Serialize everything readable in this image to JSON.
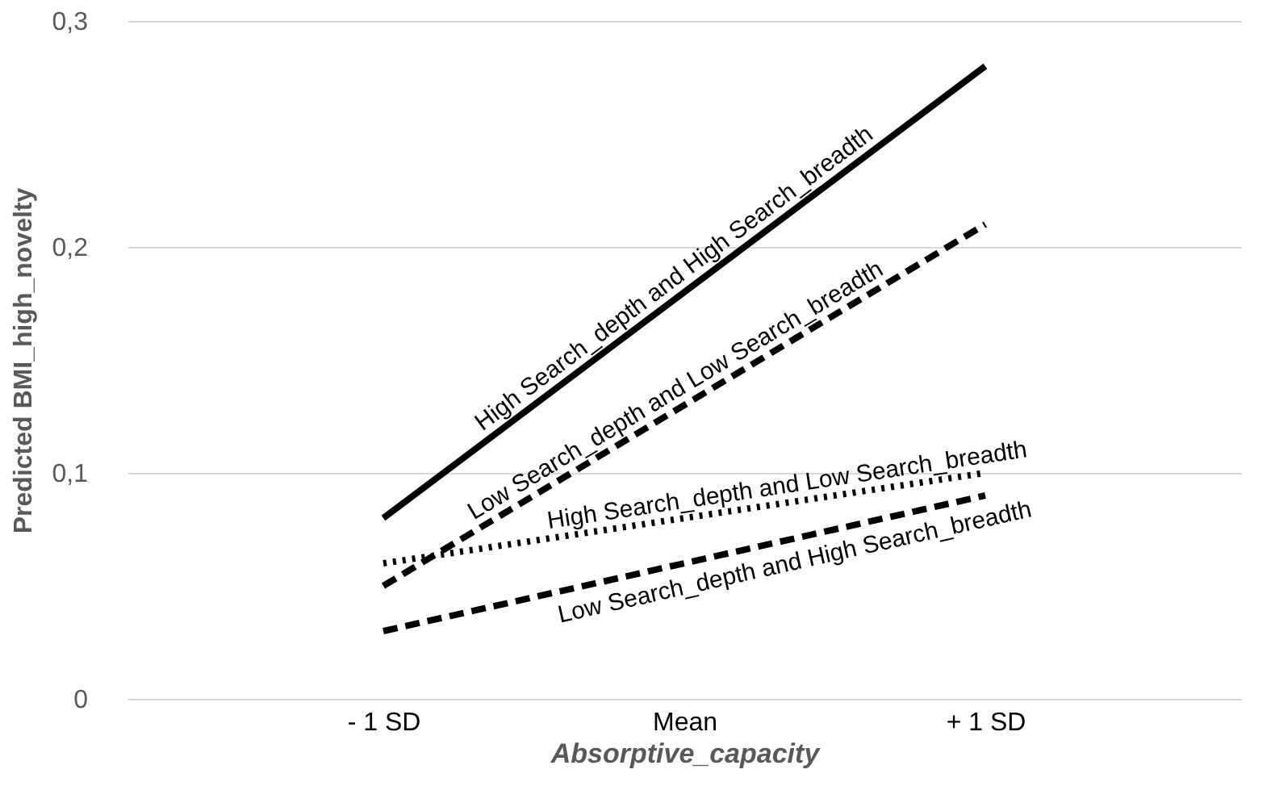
{
  "chart_data": {
    "type": "line",
    "xlabel": "Absorptive_capacity",
    "ylabel": "Predicted BMI_high_novelty",
    "categories": [
      "- 1 SD",
      "Mean",
      "+ 1 SD"
    ],
    "series": [
      {
        "name": "High Search_depth and High Search_breadth",
        "color": "#000000",
        "line_style": "solid",
        "values": [
          0.08,
          0.18,
          0.28
        ]
      },
      {
        "name": "Low Search_depth and Low Search_breadth",
        "color": "#000000",
        "line_style": "dashed",
        "values": [
          0.05,
          0.13,
          0.21
        ]
      },
      {
        "name": "High Search_depth and Low Search_breadth",
        "color": "#000000",
        "line_style": "dotted",
        "values": [
          0.06,
          0.08,
          0.1
        ]
      },
      {
        "name": "Low Search_depth and High Search_breadth",
        "color": "#000000",
        "line_style": "dashed",
        "values": [
          0.03,
          0.06,
          0.09
        ]
      }
    ],
    "ylim": [
      0,
      0.3
    ],
    "yticks": [
      0,
      {
        "value": 0.1,
        "label": "0,1"
      },
      {
        "value": 0.2,
        "label": "0,2"
      },
      {
        "value": 0.3,
        "label": "0,3"
      }
    ],
    "grid": "y",
    "marker": "none"
  }
}
